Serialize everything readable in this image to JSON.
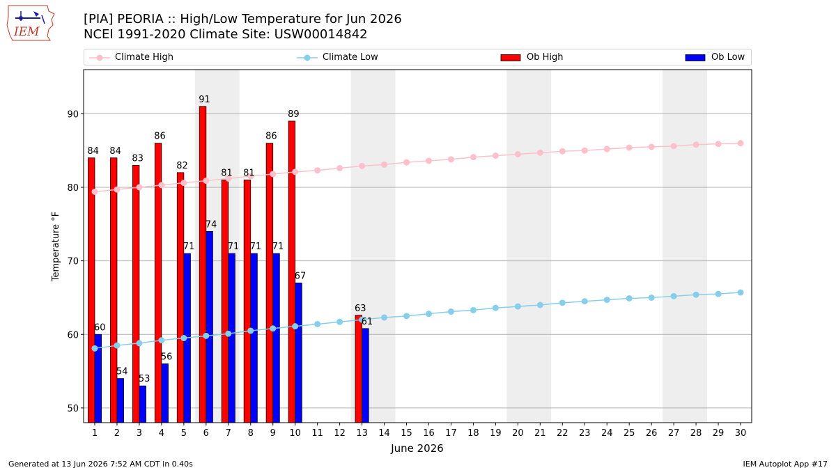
{
  "header": {
    "logo_text": "IEM",
    "title_line1": "[PIA] PEORIA :: High/Low Temperature for Jun 2026",
    "title_line2": "NCEI 1991-2020 Climate Site: USW00014842"
  },
  "legend": {
    "placement": "top, spanning",
    "items": [
      {
        "label": "Climate High",
        "kind": "line-marker",
        "color": "#ffc0cb"
      },
      {
        "label": "Climate Low",
        "kind": "line-marker",
        "color": "#87ceeb"
      },
      {
        "label": "Ob High",
        "kind": "bar",
        "color": "#ff0000"
      },
      {
        "label": "Ob Low",
        "kind": "bar",
        "color": "#0000ff"
      }
    ]
  },
  "chart_data": {
    "type": "bar",
    "xlabel": "June 2026",
    "ylabel": "Temperature °F",
    "ylim": [
      48,
      96
    ],
    "xlim": [
      0.5,
      30.5
    ],
    "yticks": [
      50,
      60,
      70,
      80,
      90
    ],
    "x": [
      1,
      2,
      3,
      4,
      5,
      6,
      7,
      8,
      9,
      10,
      11,
      12,
      13,
      14,
      15,
      16,
      17,
      18,
      19,
      20,
      21,
      22,
      23,
      24,
      25,
      26,
      27,
      28,
      29,
      30
    ],
    "grid": "horizontal",
    "weekend_shading": [
      [
        6,
        7
      ],
      [
        13,
        14
      ],
      [
        20,
        21
      ],
      [
        27,
        28
      ]
    ],
    "shade_color": "#eeeeee",
    "series": [
      {
        "name": "Ob High",
        "type": "bar",
        "color": "#ff0000",
        "values": [
          84,
          84,
          83,
          86,
          82,
          91,
          81,
          81,
          86,
          89,
          null,
          null,
          62.6,
          null,
          null,
          null,
          null,
          null,
          null,
          null,
          null,
          null,
          null,
          null,
          null,
          null,
          null,
          null,
          null,
          null
        ],
        "labels": [
          "84",
          "84",
          "83",
          "86",
          "82",
          "91",
          "81",
          "81",
          "86",
          "89",
          "",
          "",
          "63",
          "",
          "",
          "",
          "",
          "",
          "",
          "",
          "",
          "",
          "",
          "",
          "",
          "",
          "",
          "",
          "",
          ""
        ]
      },
      {
        "name": "Ob Low",
        "type": "bar",
        "color": "#0000ff",
        "values": [
          60,
          54,
          53,
          56,
          71,
          74,
          71,
          71,
          71,
          67,
          null,
          null,
          60.8,
          null,
          null,
          null,
          null,
          null,
          null,
          null,
          null,
          null,
          null,
          null,
          null,
          null,
          null,
          null,
          null,
          null
        ],
        "labels": [
          "60",
          "54",
          "53",
          "56",
          "71",
          "74",
          "71",
          "71",
          "71",
          "67",
          "",
          "",
          "61",
          "",
          "",
          "",
          "",
          "",
          "",
          "",
          "",
          "",
          "",
          "",
          "",
          "",
          "",
          "",
          "",
          ""
        ]
      },
      {
        "name": "Climate High",
        "type": "line",
        "color": "#ffc0cb",
        "values": [
          79.4,
          79.7,
          80.0,
          80.3,
          80.6,
          80.9,
          81.2,
          81.5,
          81.8,
          82.1,
          82.3,
          82.6,
          82.9,
          83.1,
          83.4,
          83.6,
          83.8,
          84.1,
          84.3,
          84.5,
          84.7,
          84.9,
          85.0,
          85.2,
          85.4,
          85.5,
          85.6,
          85.8,
          85.9,
          86.0
        ]
      },
      {
        "name": "Climate Low",
        "type": "line",
        "color": "#87ceeb",
        "values": [
          58.1,
          58.5,
          58.8,
          59.2,
          59.5,
          59.8,
          60.1,
          60.5,
          60.8,
          61.1,
          61.4,
          61.7,
          62.0,
          62.3,
          62.5,
          62.8,
          63.1,
          63.3,
          63.6,
          63.8,
          64.0,
          64.3,
          64.5,
          64.7,
          64.9,
          65.0,
          65.2,
          65.4,
          65.5,
          65.7
        ]
      }
    ]
  },
  "footer": {
    "generated": "Generated at 13 Jun 2026 7:52 AM CDT in 0.40s",
    "app": "IEM Autoplot App #17"
  }
}
